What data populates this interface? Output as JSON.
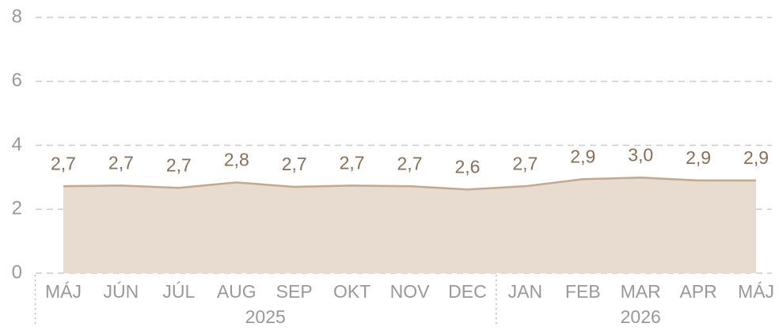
{
  "chart_data": {
    "type": "area",
    "categories": [
      "MÁJ",
      "JÚN",
      "JÚL",
      "AUG",
      "SEP",
      "OKT",
      "NOV",
      "DEC",
      "JAN",
      "FEB",
      "MAR",
      "APR",
      "MÁJ"
    ],
    "groups": [
      {
        "label": "2025",
        "count": 8
      },
      {
        "label": "2026",
        "count": 5
      }
    ],
    "values": [
      2.72,
      2.74,
      2.67,
      2.84,
      2.7,
      2.74,
      2.72,
      2.62,
      2.72,
      2.94,
      2.99,
      2.9,
      2.9
    ],
    "value_labels": [
      "2,7",
      "2,7",
      "2,7",
      "2,8",
      "2,7",
      "2,7",
      "2,7",
      "2,6",
      "2,7",
      "2,9",
      "3,0",
      "2,9",
      "2,9"
    ],
    "color": "#c4a88c",
    "fill": "#e8dcd0",
    "ylim": [
      0,
      8
    ],
    "yticks": [
      0,
      2,
      4,
      6,
      8
    ],
    "grid": true
  }
}
